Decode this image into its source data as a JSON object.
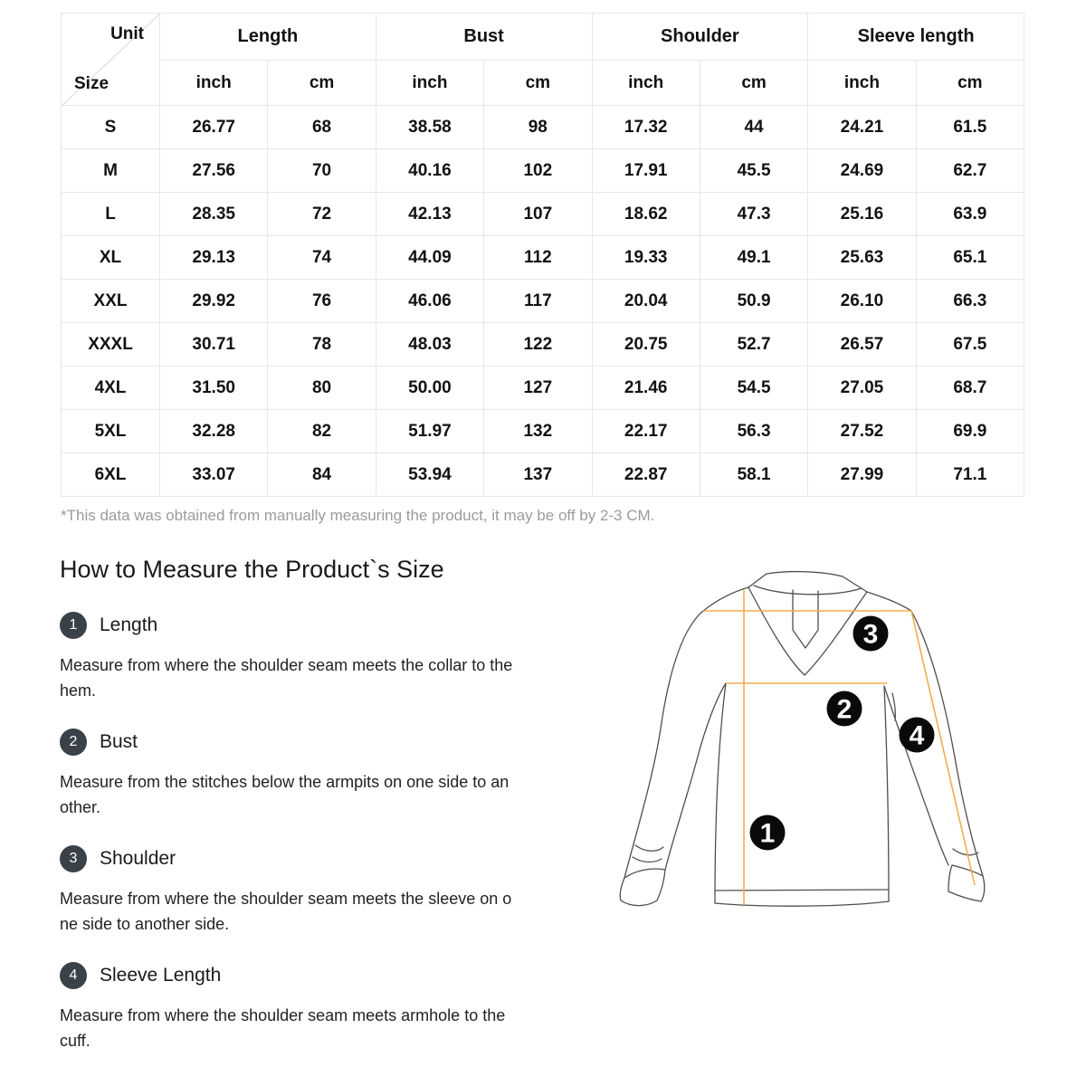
{
  "table": {
    "corner": {
      "top": "Unit",
      "bottom": "Size"
    },
    "groups": [
      "Length",
      "Bust",
      "Shoulder",
      "Sleeve length"
    ],
    "unit_labels": [
      "inch",
      "cm"
    ],
    "rows": [
      {
        "size": "S",
        "values": [
          "26.77",
          "68",
          "38.58",
          "98",
          "17.32",
          "44",
          "24.21",
          "61.5"
        ]
      },
      {
        "size": "M",
        "values": [
          "27.56",
          "70",
          "40.16",
          "102",
          "17.91",
          "45.5",
          "24.69",
          "62.7"
        ]
      },
      {
        "size": "L",
        "values": [
          "28.35",
          "72",
          "42.13",
          "107",
          "18.62",
          "47.3",
          "25.16",
          "63.9"
        ]
      },
      {
        "size": "XL",
        "values": [
          "29.13",
          "74",
          "44.09",
          "112",
          "19.33",
          "49.1",
          "25.63",
          "65.1"
        ]
      },
      {
        "size": "XXL",
        "values": [
          "29.92",
          "76",
          "46.06",
          "117",
          "20.04",
          "50.9",
          "26.10",
          "66.3"
        ]
      },
      {
        "size": "XXXL",
        "values": [
          "30.71",
          "78",
          "48.03",
          "122",
          "20.75",
          "52.7",
          "26.57",
          "67.5"
        ]
      },
      {
        "size": "4XL",
        "values": [
          "31.50",
          "80",
          "50.00",
          "127",
          "21.46",
          "54.5",
          "27.05",
          "68.7"
        ]
      },
      {
        "size": "5XL",
        "values": [
          "32.28",
          "82",
          "51.97",
          "132",
          "22.17",
          "56.3",
          "27.52",
          "69.9"
        ]
      },
      {
        "size": "6XL",
        "values": [
          "33.07",
          "84",
          "53.94",
          "137",
          "22.87",
          "58.1",
          "27.99",
          "71.1"
        ]
      }
    ]
  },
  "footnote": "*This data was obtained from manually measuring the product, it may be off by 2-3 CM.",
  "how_to": {
    "heading": "How to Measure the Product`s Size",
    "sections": [
      {
        "num": "1",
        "title": "Length",
        "lines": [
          "Measure from where the shoulder seam meets the collar to the",
          "hem."
        ]
      },
      {
        "num": "2",
        "title": "Bust",
        "lines": [
          "Measure from the stitches below the armpits on one side to an",
          "other."
        ]
      },
      {
        "num": "3",
        "title": "Shoulder",
        "lines": [
          "Measure from where the shoulder seam meets the sleeve on o",
          "ne side to another side."
        ]
      },
      {
        "num": "4",
        "title": "Sleeve Length",
        "lines": [
          "Measure from where the shoulder seam meets armhole to the",
          "cuff."
        ]
      }
    ]
  },
  "diagram": {
    "markers": [
      "1",
      "2",
      "3",
      "4"
    ],
    "line_color": "#F3AC4F",
    "outline_color": "#4f4f4f",
    "badge_color": "#0a0a0a"
  }
}
